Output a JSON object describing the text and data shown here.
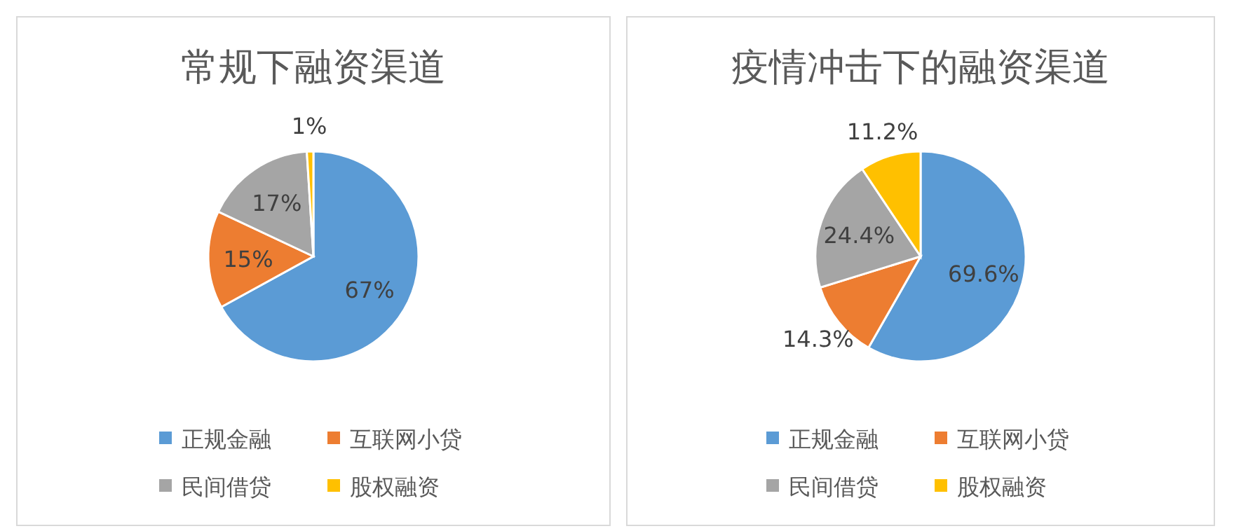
{
  "chart_data": [
    {
      "type": "pie",
      "title": "常规下融资渠道",
      "categories": [
        "正规金融",
        "互联网小贷",
        "民间借贷",
        "股权融资"
      ],
      "values": [
        67,
        15,
        17,
        1
      ],
      "colors": [
        "#5b9bd5",
        "#ed7d31",
        "#a5a5a5",
        "#ffc000"
      ],
      "value_labels": [
        "67%",
        "15%",
        "17%",
        "1%"
      ],
      "legend": "bottom"
    },
    {
      "type": "pie",
      "title": "疫情冲击下的融资渠道",
      "categories": [
        "正规金融",
        "互联网小贷",
        "民间借贷",
        "股权融资"
      ],
      "values": [
        69.6,
        14.3,
        24.4,
        11.2
      ],
      "colors": [
        "#5b9bd5",
        "#ed7d31",
        "#a5a5a5",
        "#ffc000"
      ],
      "value_labels": [
        "69.6%",
        "14.3%",
        "24.4%",
        "11.2%"
      ],
      "legend": "bottom"
    }
  ]
}
